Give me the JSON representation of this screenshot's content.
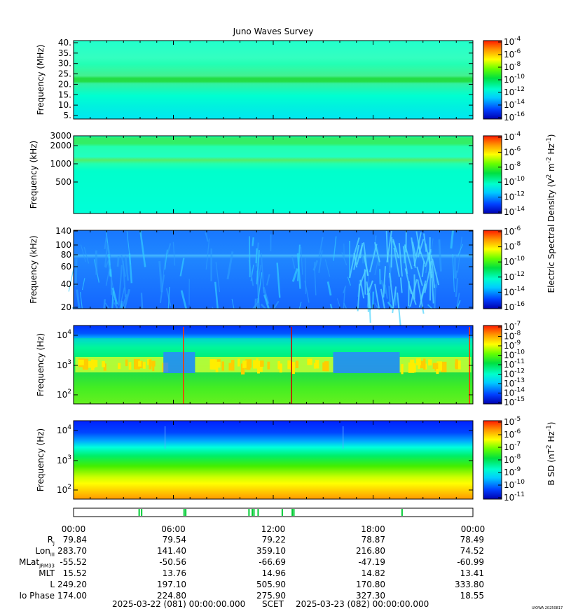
{
  "title": "Juno Waves Survey",
  "colors": {
    "plot_bg": "#00ffcc",
    "bar_green": "#00cc33"
  },
  "panels": [
    {
      "ylabel": "Frequency (MHz)",
      "yticks": [
        "40.",
        "35.",
        "30.",
        "25.",
        "20.",
        "15.",
        "10.",
        "5."
      ],
      "scale": "linear",
      "yrange": [
        3,
        41
      ],
      "colorbar": {
        "ticks": [
          {
            "base": "10",
            "exp": "-4"
          },
          {
            "base": "10",
            "exp": "-6"
          },
          {
            "base": "10",
            "exp": "-8"
          },
          {
            "base": "10",
            "exp": "-10"
          },
          {
            "base": "10",
            "exp": "-12"
          },
          {
            "base": "10",
            "exp": "-14"
          },
          {
            "base": "10",
            "exp": "-16"
          }
        ]
      }
    },
    {
      "ylabel": "Frequency (kHz)",
      "yticks": [
        "3000",
        "2000",
        "1000",
        "500"
      ],
      "scale": "log",
      "yrange": [
        140,
        3000
      ],
      "colorbar": {
        "ticks": [
          {
            "base": "10",
            "exp": "-4"
          },
          {
            "base": "10",
            "exp": "-6"
          },
          {
            "base": "10",
            "exp": "-8"
          },
          {
            "base": "10",
            "exp": "-10"
          },
          {
            "base": "10",
            "exp": "-12"
          },
          {
            "base": "10",
            "exp": "-14"
          }
        ]
      }
    },
    {
      "ylabel": "Frequency (kHz)",
      "yticks": [
        "140",
        "100",
        "80",
        "60",
        "40",
        "20"
      ],
      "scale": "log",
      "yrange": [
        20,
        140
      ],
      "colorbar": {
        "ticks": [
          {
            "base": "10",
            "exp": "-6"
          },
          {
            "base": "10",
            "exp": "-8"
          },
          {
            "base": "10",
            "exp": "-10"
          },
          {
            "base": "10",
            "exp": "-12"
          },
          {
            "base": "10",
            "exp": "-14"
          },
          {
            "base": "10",
            "exp": "-16"
          }
        ]
      }
    },
    {
      "ylabel": "Frequency (Hz)",
      "yticks": [
        {
          "base": "10",
          "exp": "4"
        },
        {
          "base": "10",
          "exp": "3"
        },
        {
          "base": "10",
          "exp": "2"
        }
      ],
      "scale": "log",
      "yrange": [
        50,
        20000
      ],
      "colorbar": {
        "ticks": [
          {
            "base": "10",
            "exp": "-7"
          },
          {
            "base": "10",
            "exp": "-8"
          },
          {
            "base": "10",
            "exp": "-9"
          },
          {
            "base": "10",
            "exp": "-10"
          },
          {
            "base": "10",
            "exp": "-11"
          },
          {
            "base": "10",
            "exp": "-12"
          },
          {
            "base": "10",
            "exp": "-13"
          },
          {
            "base": "10",
            "exp": "-14"
          },
          {
            "base": "10",
            "exp": "-15"
          }
        ]
      }
    },
    {
      "ylabel": "Frequency (Hz)",
      "yticks": [
        {
          "base": "10",
          "exp": "4"
        },
        {
          "base": "10",
          "exp": "3"
        },
        {
          "base": "10",
          "exp": "2"
        }
      ],
      "scale": "log",
      "yrange": [
        50,
        20000
      ],
      "colorbar": {
        "ticks": [
          {
            "base": "10",
            "exp": "-5"
          },
          {
            "base": "10",
            "exp": "-6"
          },
          {
            "base": "10",
            "exp": "-7"
          },
          {
            "base": "10",
            "exp": "-8"
          },
          {
            "base": "10",
            "exp": "-9"
          },
          {
            "base": "10",
            "exp": "-10"
          },
          {
            "base": "10",
            "exp": "-11"
          }
        ]
      }
    }
  ],
  "colorbar_labels": {
    "electric": {
      "prefix": "Electric Spectral Density (V",
      "p2": "2",
      "mid1": " m",
      "p3": "-2",
      "mid2": " Hz",
      "p4": "-1",
      "suffix": ")"
    },
    "magnetic": {
      "prefix": "B SD (nT",
      "p2": "2",
      "mid1": " Hz",
      "p3": "-1",
      "suffix": ")"
    }
  },
  "chart_data": {
    "type": "heatmap",
    "title": "Juno Waves Survey",
    "x_range_hours": [
      0,
      24
    ],
    "x_tick_labels": [
      "00:00",
      "06:00",
      "12:00",
      "18:00",
      "00:00"
    ],
    "mode_bar_events_hours": [
      3.9,
      4.05,
      6.6,
      6.7,
      10.5,
      10.7,
      10.8,
      11.05,
      12.5,
      13.1,
      13.2,
      19.7
    ]
  },
  "ephemeris": [
    {
      "label": "R",
      "sub": "J",
      "values": [
        "79.84",
        "79.54",
        "79.22",
        "78.87",
        "78.49"
      ]
    },
    {
      "label": "Lon",
      "sub": "III",
      "values": [
        "283.70",
        "141.40",
        "359.10",
        "216.80",
        "74.52"
      ]
    },
    {
      "label": "MLat",
      "sub": "JRM33",
      "values": [
        "-55.52",
        "-50.56",
        "-66.69",
        "-47.19",
        "-60.99"
      ]
    },
    {
      "label": "MLT",
      "sub": "",
      "values": [
        "15.52",
        "13.76",
        "14.96",
        "14.82",
        "13.41"
      ]
    },
    {
      "label": "L",
      "sub": "",
      "values": [
        "249.20",
        "197.10",
        "505.90",
        "170.80",
        "333.80"
      ]
    },
    {
      "label": "Io Phase",
      "sub": "",
      "values": [
        "174.00",
        "224.80",
        "275.90",
        "327.30",
        "18.55"
      ]
    }
  ],
  "footer": {
    "start": "2025-03-22 (081) 00:00:00.000",
    "scet": "SCET",
    "end": "2025-03-23 (082) 00:00:00.000"
  },
  "credit": "UIOWA 20250817"
}
